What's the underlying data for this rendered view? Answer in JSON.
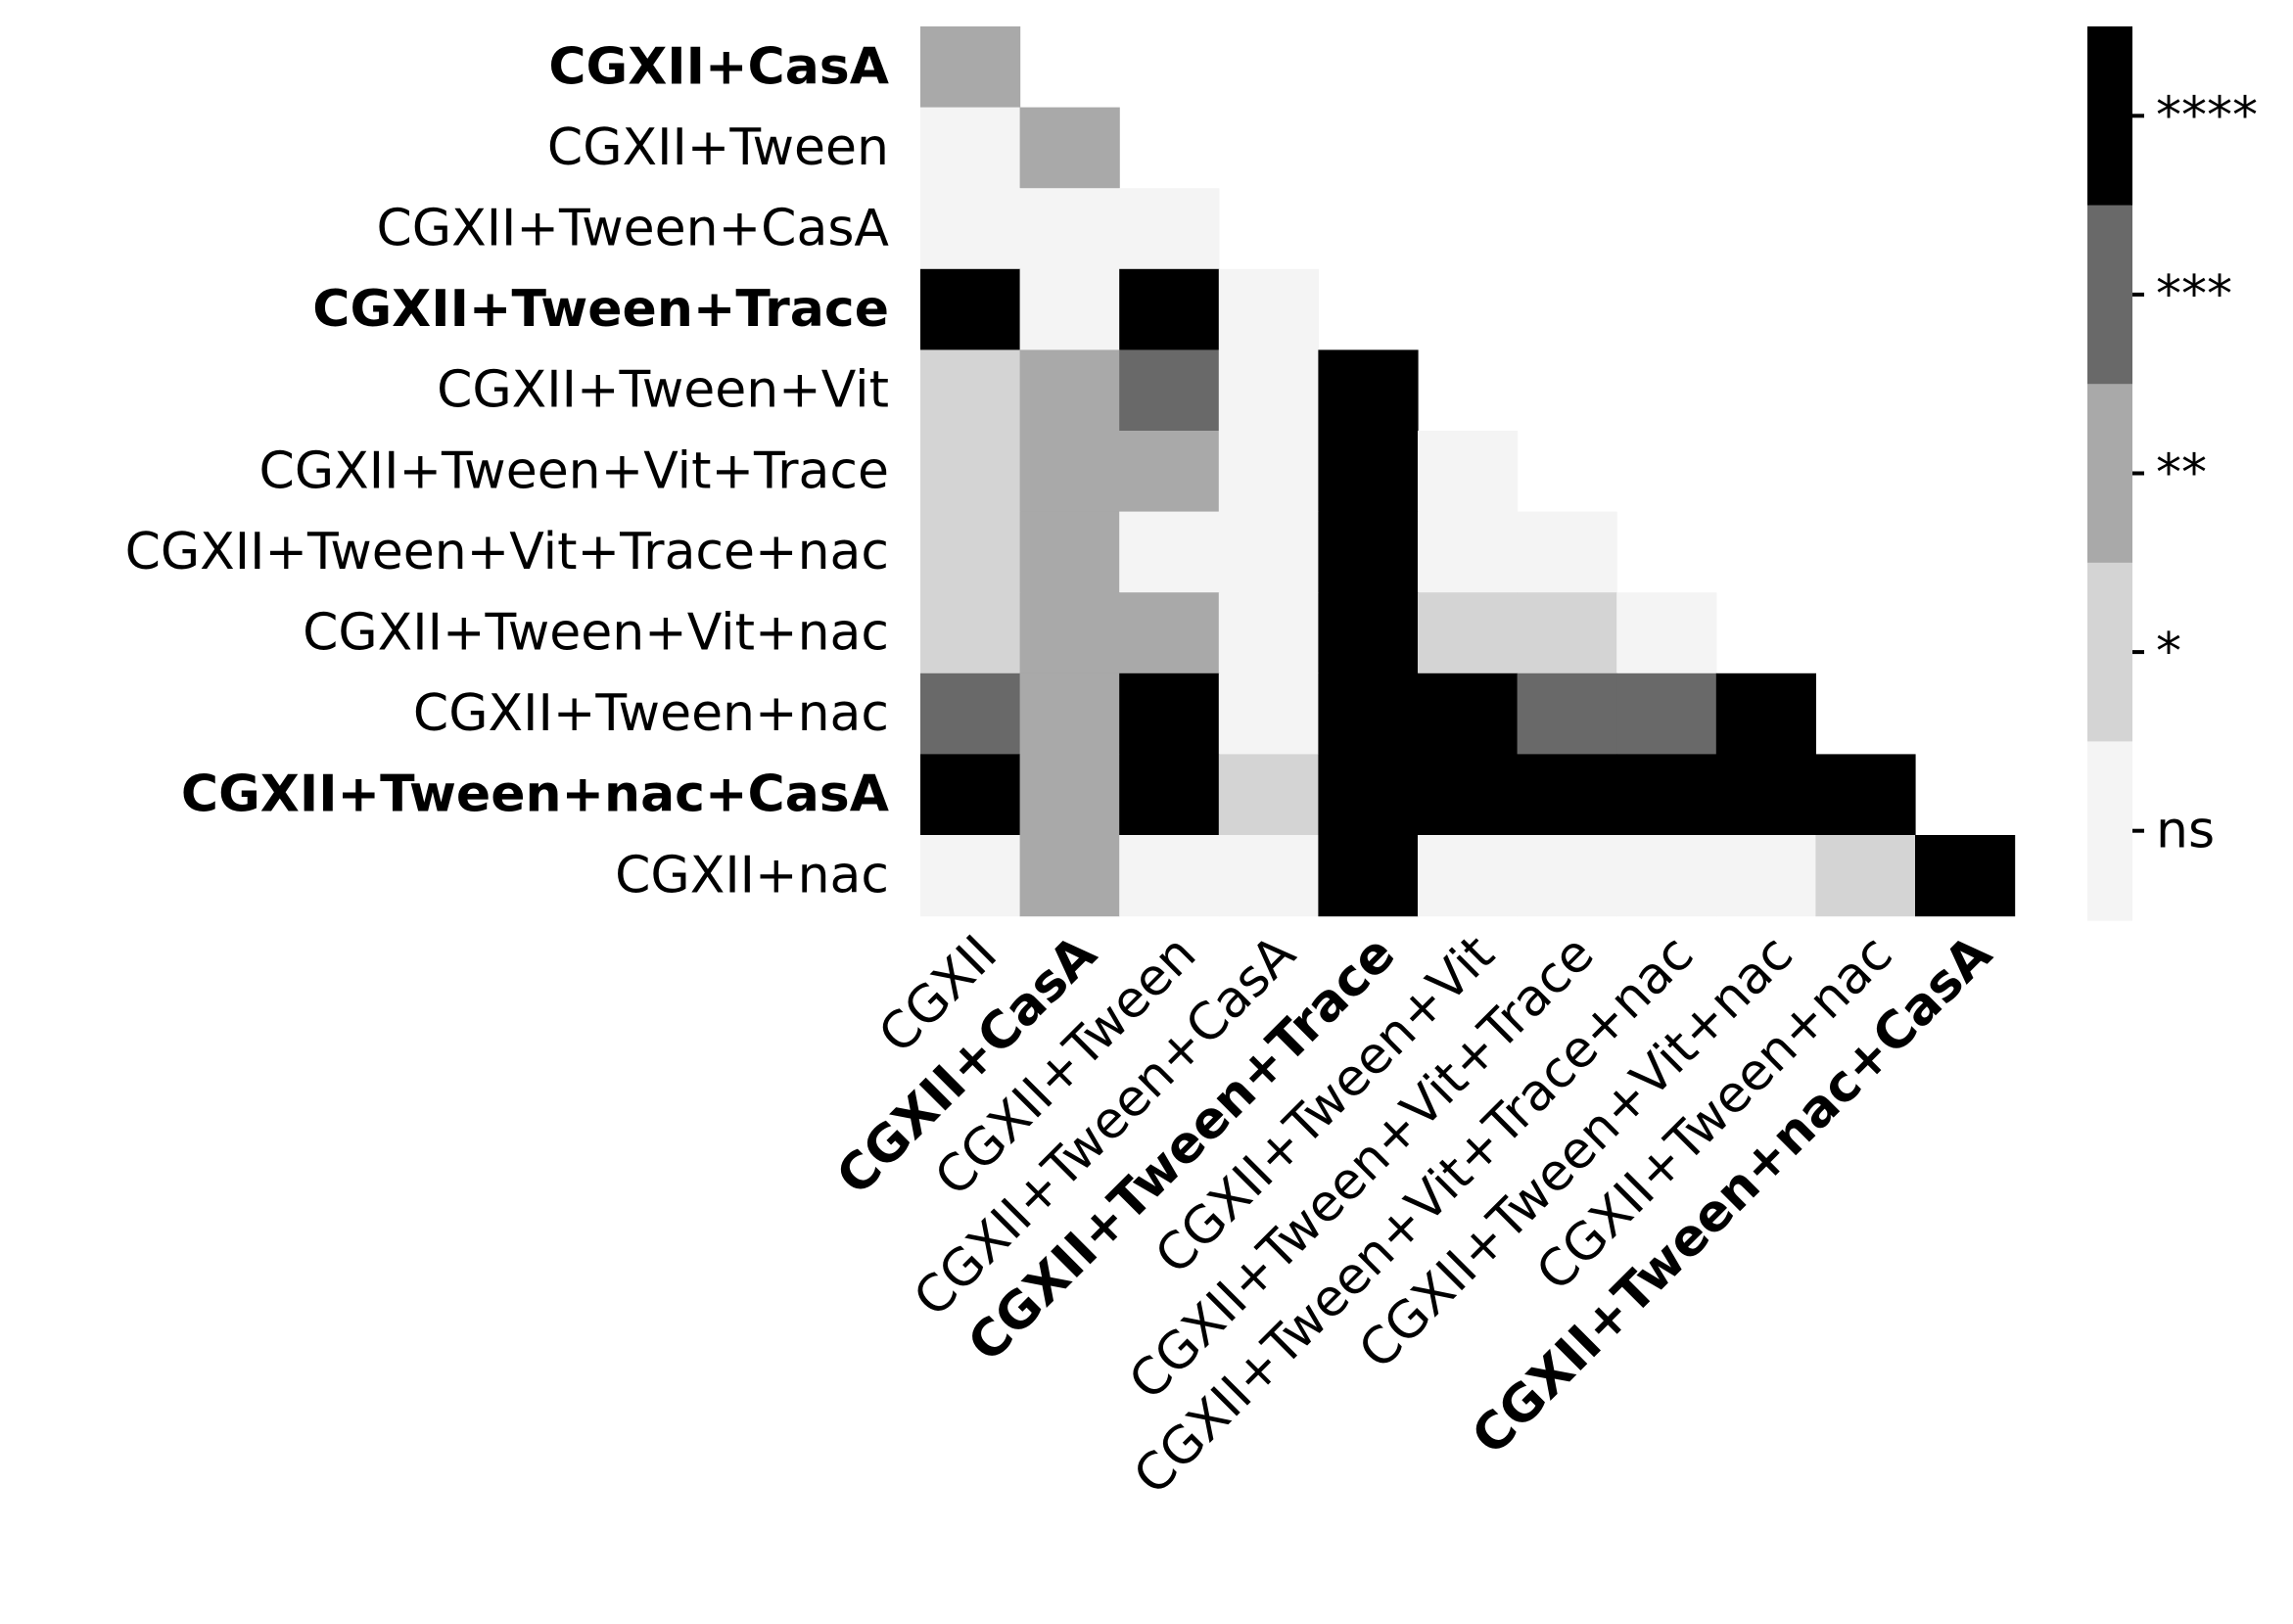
{
  "chart_data": {
    "type": "heatmap",
    "x_labels": [
      {
        "text": "CGXII",
        "bold": false
      },
      {
        "text": "CGXII+CasA",
        "bold": true
      },
      {
        "text": "CGXII+Tween",
        "bold": false
      },
      {
        "text": "CGXII+Tween+CasA",
        "bold": false
      },
      {
        "text": "CGXII+Tween+Trace",
        "bold": true
      },
      {
        "text": "CGXII+Tween+Vit",
        "bold": false
      },
      {
        "text": "CGXII+Tween+Vit+Trace",
        "bold": false
      },
      {
        "text": "CGXII+Tween+Vit+Trace+nac",
        "bold": false
      },
      {
        "text": "CGXII+Tween+Vit+nac",
        "bold": false
      },
      {
        "text": "CGXII+Tween+nac",
        "bold": false
      },
      {
        "text": "CGXII+Tween+nac+CasA",
        "bold": true
      }
    ],
    "y_labels": [
      {
        "text": "CGXII+CasA",
        "bold": true
      },
      {
        "text": "CGXII+Tween",
        "bold": false
      },
      {
        "text": "CGXII+Tween+CasA",
        "bold": false
      },
      {
        "text": "CGXII+Tween+Trace",
        "bold": true
      },
      {
        "text": "CGXII+Tween+Vit",
        "bold": false
      },
      {
        "text": "CGXII+Tween+Vit+Trace",
        "bold": false
      },
      {
        "text": "CGXII+Tween+Vit+Trace+nac",
        "bold": false
      },
      {
        "text": "CGXII+Tween+Vit+nac",
        "bold": false
      },
      {
        "text": "CGXII+Tween+nac",
        "bold": false
      },
      {
        "text": "CGXII+Tween+nac+CasA",
        "bold": true
      },
      {
        "text": "CGXII+nac",
        "bold": false
      }
    ],
    "levels": [
      "ns",
      "*",
      "**",
      "***",
      "****"
    ],
    "level_colors": [
      "#f4f4f4",
      "#d4d4d4",
      "#a9a9a9",
      "#696969",
      "#000000"
    ],
    "matrix": [
      [
        2
      ],
      [
        0,
        2
      ],
      [
        0,
        0,
        0
      ],
      [
        4,
        0,
        4,
        0
      ],
      [
        1,
        2,
        3,
        0,
        4
      ],
      [
        1,
        2,
        2,
        0,
        4,
        0
      ],
      [
        1,
        2,
        0,
        0,
        4,
        0,
        0
      ],
      [
        1,
        2,
        2,
        0,
        4,
        1,
        1,
        0
      ],
      [
        3,
        2,
        4,
        0,
        4,
        4,
        3,
        3,
        4
      ],
      [
        4,
        2,
        4,
        1,
        4,
        4,
        4,
        4,
        4,
        4
      ],
      [
        0,
        2,
        0,
        0,
        4,
        0,
        0,
        0,
        0,
        1,
        4
      ]
    ],
    "colorbar": {
      "ticks": [
        "ns",
        "*",
        "**",
        "***",
        "****"
      ]
    }
  }
}
